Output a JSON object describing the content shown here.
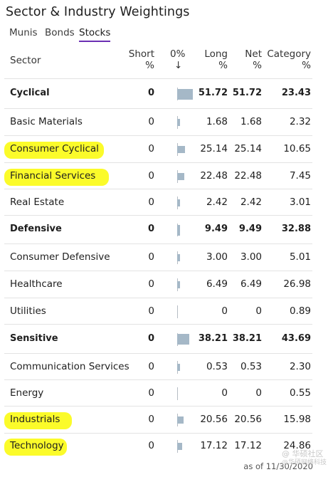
{
  "title": "Sector & Industry Weightings",
  "tabs": [
    {
      "label": "Munis",
      "active": false
    },
    {
      "label": "Bonds",
      "active": false
    },
    {
      "label": "Stocks",
      "active": true
    }
  ],
  "headers": {
    "sector": "Sector",
    "short": [
      "Short",
      "%"
    ],
    "zero": [
      "0%",
      "↓"
    ],
    "long": [
      "Long",
      "%"
    ],
    "net": [
      "Net",
      "%"
    ],
    "category": [
      "Category",
      "%"
    ]
  },
  "rows": [
    {
      "sector": "Cyclical",
      "short": "0",
      "long": "51.72",
      "net": "51.72",
      "category": "23.43",
      "bold": true,
      "highlight": false
    },
    {
      "sector": "Basic Materials",
      "short": "0",
      "long": "1.68",
      "net": "1.68",
      "category": "2.32",
      "bold": false,
      "highlight": false
    },
    {
      "sector": "Consumer Cyclical",
      "short": "0",
      "long": "25.14",
      "net": "25.14",
      "category": "10.65",
      "bold": false,
      "highlight": true
    },
    {
      "sector": "Financial Services",
      "short": "0",
      "long": "22.48",
      "net": "22.48",
      "category": "7.45",
      "bold": false,
      "highlight": true
    },
    {
      "sector": "Real Estate",
      "short": "0",
      "long": "2.42",
      "net": "2.42",
      "category": "3.01",
      "bold": false,
      "highlight": false
    },
    {
      "sector": "Defensive",
      "short": "0",
      "long": "9.49",
      "net": "9.49",
      "category": "32.88",
      "bold": true,
      "highlight": false
    },
    {
      "sector": "Consumer Defensive",
      "short": "0",
      "long": "3.00",
      "net": "3.00",
      "category": "5.01",
      "bold": false,
      "highlight": false
    },
    {
      "sector": "Healthcare",
      "short": "0",
      "long": "6.49",
      "net": "6.49",
      "category": "26.98",
      "bold": false,
      "highlight": false
    },
    {
      "sector": "Utilities",
      "short": "0",
      "long": "0",
      "net": "0",
      "category": "0.89",
      "bold": false,
      "highlight": false
    },
    {
      "sector": "Sensitive",
      "short": "0",
      "long": "38.21",
      "net": "38.21",
      "category": "43.69",
      "bold": true,
      "highlight": false
    },
    {
      "sector": "Communication Services",
      "short": "0",
      "long": "0.53",
      "net": "0.53",
      "category": "2.30",
      "bold": false,
      "highlight": false
    },
    {
      "sector": "Energy",
      "short": "0",
      "long": "0",
      "net": "0",
      "category": "0.55",
      "bold": false,
      "highlight": false
    },
    {
      "sector": "Industrials",
      "short": "0",
      "long": "20.56",
      "net": "20.56",
      "category": "15.98",
      "bold": false,
      "highlight": true
    },
    {
      "sector": "Technology",
      "short": "0",
      "long": "17.12",
      "net": "17.12",
      "category": "24.86",
      "bold": false,
      "highlight": true
    }
  ],
  "footer": "as of 11/30/2020",
  "watermark": [
    "@ 华硕社区",
    "@华硕网络科技"
  ],
  "colors": {
    "bar": "#a5b8c7",
    "highlight": "#fbfb2a",
    "active_tab": "#6b2fb3"
  }
}
